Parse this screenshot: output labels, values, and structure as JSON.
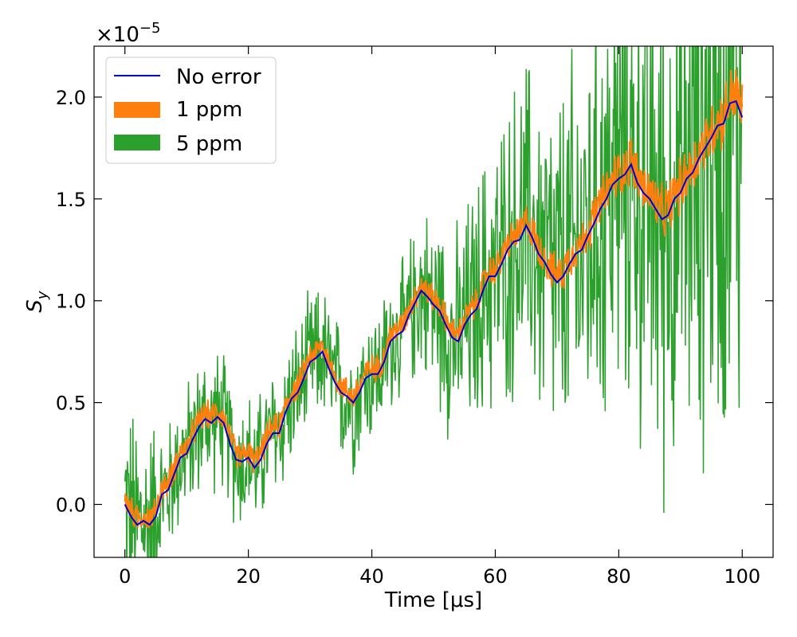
{
  "chart_data": {
    "type": "line",
    "title": "",
    "xlabel": "Time [μs]",
    "ylabel": "S_y",
    "ylabel_main": "S",
    "ylabel_sub": "y",
    "y_scale_base": "×10",
    "y_scale_exp": "−5",
    "xlim": [
      -5,
      105
    ],
    "ylim": [
      -0.26,
      2.25
    ],
    "x_ticks": [
      0,
      20,
      40,
      60,
      80,
      100
    ],
    "x_tick_labels": [
      "0",
      "20",
      "40",
      "60",
      "80",
      "100"
    ],
    "y_ticks": [
      0.0,
      0.5,
      1.0,
      1.5,
      2.0
    ],
    "y_tick_labels": [
      "0.0",
      "0.5",
      "1.0",
      "1.5",
      "2.0"
    ],
    "grid": false,
    "legend_position": "top-left",
    "series": [
      {
        "name": "No error",
        "kind": "line",
        "color": "#0000cc",
        "x": [
          0,
          1,
          2,
          3,
          4,
          5,
          6,
          7,
          8,
          9,
          10,
          11,
          12,
          13,
          14,
          15,
          16,
          17,
          18,
          19,
          20,
          21,
          22,
          23,
          24,
          25,
          26,
          27,
          28,
          29,
          30,
          31,
          32,
          33,
          34,
          35,
          36,
          37,
          38,
          39,
          40,
          41,
          42,
          43,
          44,
          45,
          46,
          47,
          48,
          49,
          50,
          51,
          52,
          53,
          54,
          55,
          56,
          57,
          58,
          59,
          60,
          61,
          62,
          63,
          64,
          65,
          66,
          67,
          68,
          69,
          70,
          71,
          72,
          73,
          74,
          75,
          76,
          77,
          78,
          79,
          80,
          81,
          82,
          83,
          84,
          85,
          86,
          87,
          88,
          89,
          90,
          91,
          92,
          93,
          94,
          95,
          96,
          97,
          98,
          99,
          100
        ],
        "y": [
          0.0,
          -0.06,
          -0.1,
          -0.08,
          -0.1,
          -0.06,
          0.05,
          0.07,
          0.15,
          0.23,
          0.25,
          0.32,
          0.38,
          0.42,
          0.4,
          0.43,
          0.4,
          0.3,
          0.22,
          0.21,
          0.23,
          0.18,
          0.22,
          0.3,
          0.35,
          0.35,
          0.45,
          0.52,
          0.55,
          0.62,
          0.7,
          0.72,
          0.75,
          0.67,
          0.6,
          0.55,
          0.53,
          0.5,
          0.55,
          0.62,
          0.64,
          0.64,
          0.7,
          0.8,
          0.83,
          0.85,
          0.93,
          0.99,
          1.05,
          1.02,
          0.98,
          0.95,
          0.88,
          0.82,
          0.8,
          0.88,
          0.93,
          0.96,
          1.05,
          1.12,
          1.12,
          1.18,
          1.25,
          1.29,
          1.3,
          1.37,
          1.31,
          1.23,
          1.19,
          1.13,
          1.09,
          1.12,
          1.18,
          1.23,
          1.25,
          1.32,
          1.38,
          1.45,
          1.5,
          1.57,
          1.6,
          1.62,
          1.67,
          1.58,
          1.53,
          1.5,
          1.45,
          1.4,
          1.42,
          1.5,
          1.53,
          1.6,
          1.63,
          1.7,
          1.75,
          1.8,
          1.86,
          1.87,
          1.97,
          1.98,
          1.9
        ]
      },
      {
        "name": "1 ppm",
        "kind": "band",
        "color": "#ff7f0e"
      },
      {
        "name": "5 ppm",
        "kind": "band",
        "color": "#2ca02c"
      }
    ]
  }
}
